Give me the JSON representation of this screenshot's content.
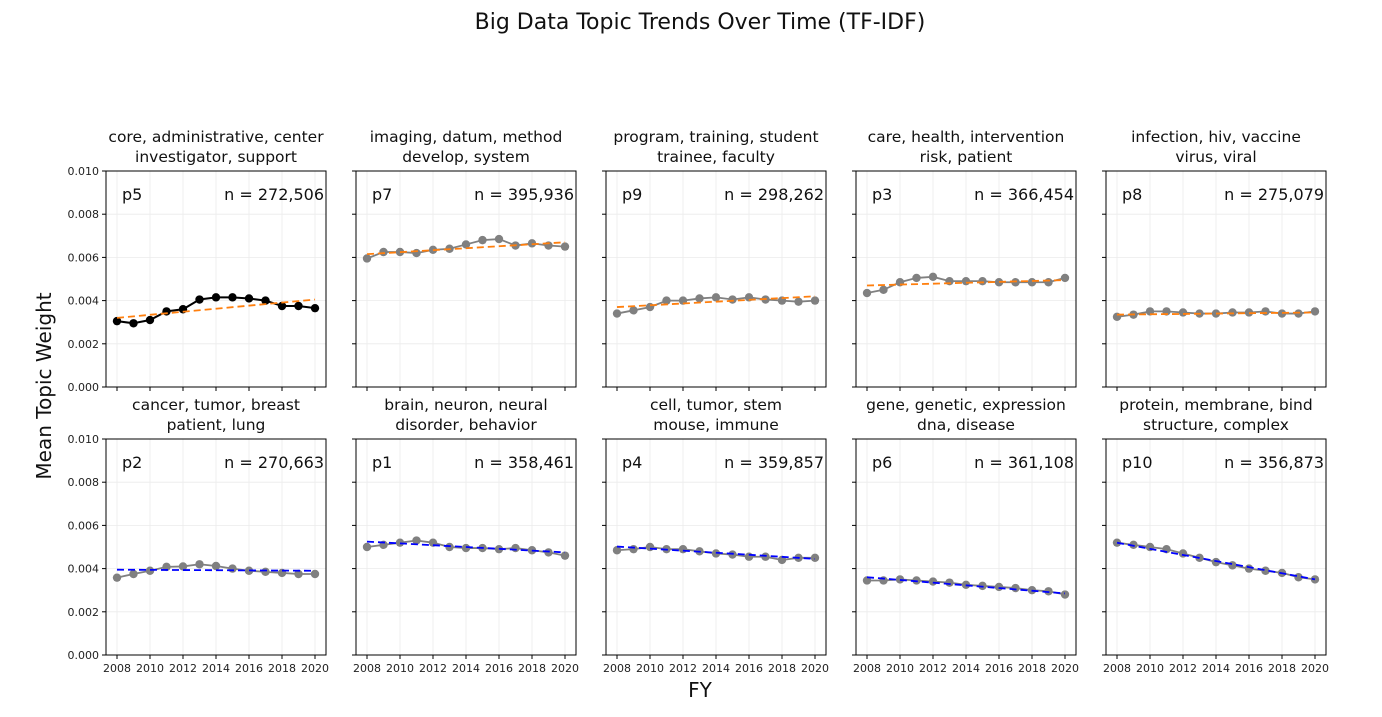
{
  "figure": {
    "title": "Big Data Topic Trends Over Time (TF-IDF)",
    "ylabel": "Mean Topic Weight",
    "xlabel": "FY"
  },
  "colors": {
    "highlight_line": "#000000",
    "normal_line": "#808080",
    "trend_up": "#ff7f0e",
    "trend_down": "#0000ff",
    "grid": "#ebebeb"
  },
  "chart_data": {
    "type": "line",
    "layout": "2x5 small multiples",
    "ylim": [
      0,
      0.01
    ],
    "yticks": [
      "0.000",
      "0.002",
      "0.004",
      "0.006",
      "0.008",
      "0.010"
    ],
    "xlim": [
      2008,
      2020
    ],
    "xticks": [
      "2008",
      "2010",
      "2012",
      "2014",
      "2016",
      "2018",
      "2020"
    ],
    "x": [
      2008,
      2009,
      2010,
      2011,
      2012,
      2013,
      2014,
      2015,
      2016,
      2017,
      2018,
      2019,
      2020
    ],
    "grid": true,
    "panels": [
      {
        "title1": "core, administrative, center",
        "title2": "investigator, support",
        "label": "p5",
        "n": "n = 272,506",
        "highlight": true,
        "trend_color": "orange",
        "values": [
          0.00305,
          0.00295,
          0.0031,
          0.0035,
          0.0036,
          0.00405,
          0.00415,
          0.00415,
          0.0041,
          0.004,
          0.00375,
          0.00375,
          0.00365
        ],
        "trend": [
          0.0032,
          0.00405
        ]
      },
      {
        "title1": "imaging, datum, method",
        "title2": "develop, system",
        "label": "p7",
        "n": "n = 395,936",
        "highlight": false,
        "trend_color": "orange",
        "values": [
          0.00595,
          0.00625,
          0.00625,
          0.0062,
          0.00635,
          0.0064,
          0.0066,
          0.0068,
          0.00685,
          0.00655,
          0.00665,
          0.00655,
          0.0065
        ],
        "trend": [
          0.00615,
          0.0067
        ]
      },
      {
        "title1": "program, training, student",
        "title2": "trainee, faculty",
        "label": "p9",
        "n": "n = 298,262",
        "highlight": false,
        "trend_color": "orange",
        "values": [
          0.0034,
          0.00355,
          0.0037,
          0.004,
          0.004,
          0.0041,
          0.00415,
          0.00405,
          0.00415,
          0.00405,
          0.004,
          0.00395,
          0.004
        ],
        "trend": [
          0.0037,
          0.0042
        ]
      },
      {
        "title1": "care, health, intervention",
        "title2": "risk, patient",
        "label": "p3",
        "n": "n = 366,454",
        "highlight": false,
        "trend_color": "orange",
        "values": [
          0.00435,
          0.0045,
          0.00485,
          0.00505,
          0.0051,
          0.0049,
          0.0049,
          0.0049,
          0.00485,
          0.00485,
          0.00485,
          0.00485,
          0.00505
        ],
        "trend": [
          0.0047,
          0.00495
        ]
      },
      {
        "title1": "infection, hiv, vaccine",
        "title2": "virus, viral",
        "label": "p8",
        "n": "n = 275,079",
        "highlight": false,
        "trend_color": "orange",
        "values": [
          0.00325,
          0.00335,
          0.0035,
          0.0035,
          0.00345,
          0.0034,
          0.0034,
          0.00345,
          0.00345,
          0.0035,
          0.0034,
          0.0034,
          0.0035
        ],
        "trend": [
          0.00335,
          0.00345
        ]
      },
      {
        "title1": "cancer, tumor, breast",
        "title2": "patient, lung",
        "label": "p2",
        "n": "n = 270,663",
        "highlight": false,
        "trend_color": "blue",
        "values": [
          0.00358,
          0.00375,
          0.0039,
          0.00408,
          0.0041,
          0.0042,
          0.00412,
          0.004,
          0.0039,
          0.00385,
          0.0038,
          0.00375,
          0.00375
        ],
        "trend": [
          0.00395,
          0.0039
        ]
      },
      {
        "title1": "brain, neuron, neural",
        "title2": "disorder, behavior",
        "label": "p1",
        "n": "n = 358,461",
        "highlight": false,
        "trend_color": "blue",
        "values": [
          0.005,
          0.0051,
          0.0052,
          0.0053,
          0.0052,
          0.005,
          0.00495,
          0.00495,
          0.0049,
          0.00495,
          0.00485,
          0.00475,
          0.0046
        ],
        "trend": [
          0.00525,
          0.00475
        ]
      },
      {
        "title1": "cell, tumor, stem",
        "title2": "mouse, immune",
        "label": "p4",
        "n": "n = 359,857",
        "highlight": false,
        "trend_color": "blue",
        "values": [
          0.00485,
          0.0049,
          0.005,
          0.0049,
          0.0049,
          0.0048,
          0.0047,
          0.00465,
          0.00455,
          0.00455,
          0.0044,
          0.0045,
          0.0045
        ],
        "trend": [
          0.00502,
          0.00445
        ]
      },
      {
        "title1": "gene, genetic, expression",
        "title2": "dna, disease",
        "label": "p6",
        "n": "n = 361,108",
        "highlight": false,
        "trend_color": "blue",
        "values": [
          0.00345,
          0.00345,
          0.0035,
          0.00345,
          0.0034,
          0.00335,
          0.00325,
          0.0032,
          0.00315,
          0.0031,
          0.003,
          0.00295,
          0.0028
        ],
        "trend": [
          0.0036,
          0.00285
        ]
      },
      {
        "title1": "protein, membrane, bind",
        "title2": "structure, complex",
        "label": "p10",
        "n": "n = 356,873",
        "highlight": false,
        "trend_color": "blue",
        "values": [
          0.0052,
          0.0051,
          0.005,
          0.0049,
          0.0047,
          0.0045,
          0.0043,
          0.00415,
          0.004,
          0.0039,
          0.0038,
          0.0036,
          0.0035
        ],
        "trend": [
          0.0052,
          0.0035
        ]
      }
    ]
  }
}
